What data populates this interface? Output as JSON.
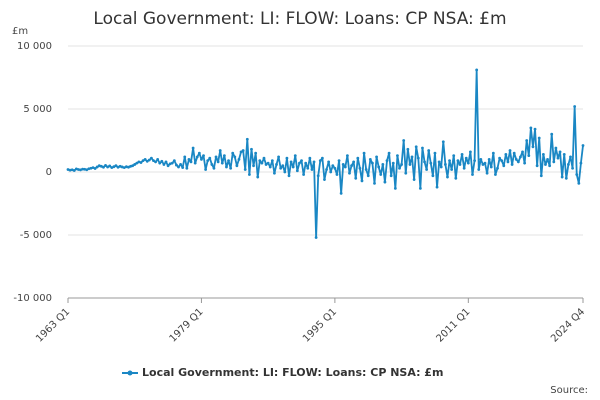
{
  "chart_data": {
    "type": "line",
    "title": "Local Government: LI: FLOW: Loans: CP NSA: £m",
    "y_label": "£m",
    "source": "Source:",
    "categories": [
      "1963 Q1",
      "1963 Q2",
      "1963 Q3",
      "1963 Q4",
      "1964 Q1",
      "1964 Q2",
      "1964 Q3",
      "1964 Q4",
      "1965 Q1",
      "1965 Q2",
      "1965 Q3",
      "1965 Q4",
      "1966 Q1",
      "1966 Q2",
      "1966 Q3",
      "1966 Q4",
      "1967 Q1",
      "1967 Q2",
      "1967 Q3",
      "1967 Q4",
      "1968 Q1",
      "1968 Q2",
      "1968 Q3",
      "1968 Q4",
      "1969 Q1",
      "1969 Q2",
      "1969 Q3",
      "1969 Q4",
      "1970 Q1",
      "1970 Q2",
      "1970 Q3",
      "1970 Q4",
      "1971 Q1",
      "1971 Q2",
      "1971 Q3",
      "1971 Q4",
      "1972 Q1",
      "1972 Q2",
      "1972 Q3",
      "1972 Q4",
      "1973 Q1",
      "1973 Q2",
      "1973 Q3",
      "1973 Q4",
      "1974 Q1",
      "1974 Q2",
      "1974 Q3",
      "1974 Q4",
      "1975 Q1",
      "1975 Q2",
      "1975 Q3",
      "1975 Q4",
      "1976 Q1",
      "1976 Q2",
      "1976 Q3",
      "1976 Q4",
      "1977 Q1",
      "1977 Q2",
      "1977 Q3",
      "1977 Q4",
      "1978 Q1",
      "1978 Q2",
      "1978 Q3",
      "1978 Q4",
      "1979 Q1",
      "1979 Q2",
      "1979 Q3",
      "1979 Q4",
      "1980 Q1",
      "1980 Q2",
      "1980 Q3",
      "1980 Q4",
      "1981 Q1",
      "1981 Q2",
      "1981 Q3",
      "1981 Q4",
      "1982 Q1",
      "1982 Q2",
      "1982 Q3",
      "1982 Q4",
      "1983 Q1",
      "1983 Q2",
      "1983 Q3",
      "1983 Q4",
      "1984 Q1",
      "1984 Q2",
      "1984 Q3",
      "1984 Q4",
      "1985 Q1",
      "1985 Q2",
      "1985 Q3",
      "1985 Q4",
      "1986 Q1",
      "1986 Q2",
      "1986 Q3",
      "1986 Q4",
      "1987 Q1",
      "1987 Q2",
      "1987 Q3",
      "1987 Q4",
      "1988 Q1",
      "1988 Q2",
      "1988 Q3",
      "1988 Q4",
      "1989 Q1",
      "1989 Q2",
      "1989 Q3",
      "1989 Q4",
      "1990 Q1",
      "1990 Q2",
      "1990 Q3",
      "1990 Q4",
      "1991 Q1",
      "1991 Q2",
      "1991 Q3",
      "1991 Q4",
      "1992 Q1",
      "1992 Q2",
      "1992 Q3",
      "1992 Q4",
      "1993 Q1",
      "1993 Q2",
      "1993 Q3",
      "1993 Q4",
      "1994 Q1",
      "1994 Q2",
      "1994 Q3",
      "1994 Q4",
      "1995 Q1",
      "1995 Q2",
      "1995 Q3",
      "1995 Q4",
      "1996 Q1",
      "1996 Q2",
      "1996 Q3",
      "1996 Q4",
      "1997 Q1",
      "1997 Q2",
      "1997 Q3",
      "1997 Q4",
      "1998 Q1",
      "1998 Q2",
      "1998 Q3",
      "1998 Q4",
      "1999 Q1",
      "1999 Q2",
      "1999 Q3",
      "1999 Q4",
      "2000 Q1",
      "2000 Q2",
      "2000 Q3",
      "2000 Q4",
      "2001 Q1",
      "2001 Q2",
      "2001 Q3",
      "2001 Q4",
      "2002 Q1",
      "2002 Q2",
      "2002 Q3",
      "2002 Q4",
      "2003 Q1",
      "2003 Q2",
      "2003 Q3",
      "2003 Q4",
      "2004 Q1",
      "2004 Q2",
      "2004 Q3",
      "2004 Q4",
      "2005 Q1",
      "2005 Q2",
      "2005 Q3",
      "2005 Q4",
      "2006 Q1",
      "2006 Q2",
      "2006 Q3",
      "2006 Q4",
      "2007 Q1",
      "2007 Q2",
      "2007 Q3",
      "2007 Q4",
      "2008 Q1",
      "2008 Q2",
      "2008 Q3",
      "2008 Q4",
      "2009 Q1",
      "2009 Q2",
      "2009 Q3",
      "2009 Q4",
      "2010 Q1",
      "2010 Q2",
      "2010 Q3",
      "2010 Q4",
      "2011 Q1",
      "2011 Q2",
      "2011 Q3",
      "2011 Q4",
      "2012 Q1",
      "2012 Q2",
      "2012 Q3",
      "2012 Q4",
      "2013 Q1",
      "2013 Q2",
      "2013 Q3",
      "2013 Q4",
      "2014 Q1",
      "2014 Q2",
      "2014 Q3",
      "2014 Q4",
      "2015 Q1",
      "2015 Q2",
      "2015 Q3",
      "2015 Q4",
      "2016 Q1",
      "2016 Q2",
      "2016 Q3",
      "2016 Q4",
      "2017 Q1",
      "2017 Q2",
      "2017 Q3",
      "2017 Q4",
      "2018 Q1",
      "2018 Q2",
      "2018 Q3",
      "2018 Q4",
      "2019 Q1",
      "2019 Q2",
      "2019 Q3",
      "2019 Q4",
      "2020 Q1",
      "2020 Q2",
      "2020 Q3",
      "2020 Q4",
      "2021 Q1",
      "2021 Q2",
      "2021 Q3",
      "2021 Q4",
      "2022 Q1",
      "2022 Q2",
      "2022 Q3",
      "2022 Q4",
      "2023 Q1",
      "2023 Q2",
      "2023 Q3",
      "2023 Q4",
      "2024 Q1",
      "2024 Q2",
      "2024 Q3",
      "2024 Q4"
    ],
    "xtick_indices": [
      0,
      64,
      128,
      192,
      247
    ],
    "series": [
      {
        "name": "Local Government: LI: FLOW: Loans: CP NSA: £m",
        "color": "#1a87c4",
        "values": [
          200,
          150,
          180,
          120,
          250,
          200,
          170,
          230,
          220,
          180,
          260,
          300,
          350,
          280,
          400,
          500,
          450,
          380,
          520,
          400,
          480,
          350,
          420,
          500,
          380,
          450,
          400,
          350,
          420,
          380,
          450,
          500,
          600,
          700,
          800,
          750,
          900,
          1000,
          850,
          950,
          1100,
          900,
          800,
          1000,
          700,
          850,
          600,
          800,
          500,
          650,
          700,
          900,
          550,
          400,
          600,
          350,
          1200,
          300,
          1000,
          800,
          1900,
          700,
          1200,
          1500,
          1000,
          1300,
          200,
          900,
          1100,
          600,
          300,
          1200,
          800,
          1700,
          700,
          1300,
          400,
          900,
          300,
          1500,
          1200,
          500,
          1000,
          1600,
          1700,
          200,
          2600,
          -200,
          1800,
          500,
          1500,
          -400,
          900,
          700,
          1100,
          600,
          700,
          400,
          900,
          -100,
          600,
          1200,
          300,
          500,
          0,
          1100,
          -300,
          800,
          400,
          1300,
          100,
          700,
          900,
          -200,
          700,
          300,
          1100,
          200,
          800,
          -5200,
          -300,
          900,
          1100,
          -600,
          200,
          800,
          0,
          500,
          300,
          -200,
          900,
          -1700,
          600,
          400,
          1300,
          -100,
          500,
          800,
          -500,
          1100,
          300,
          -700,
          1500,
          200,
          -300,
          1000,
          700,
          -900,
          1200,
          400,
          -200,
          600,
          -800,
          900,
          1500,
          -300,
          700,
          -1300,
          1300,
          300,
          600,
          2500,
          -100,
          1800,
          600,
          1200,
          -600,
          2000,
          1100,
          -1300,
          1900,
          800,
          200,
          1700,
          700,
          -300,
          1500,
          -1200,
          800,
          400,
          2400,
          600,
          -400,
          900,
          200,
          1300,
          -500,
          900,
          600,
          1400,
          300,
          1100,
          700,
          1600,
          -200,
          900,
          8100,
          200,
          1000,
          600,
          700,
          -100,
          1000,
          400,
          1500,
          -200,
          300,
          1100,
          900,
          500,
          1400,
          800,
          1700,
          600,
          1500,
          1000,
          800,
          1200,
          1600,
          700,
          2500,
          1300,
          3500,
          2000,
          3400,
          500,
          2700,
          -300,
          1400,
          600,
          1000,
          500,
          3000,
          800,
          1900,
          1100,
          1600,
          -400,
          1400,
          -500,
          600,
          1200,
          300,
          5200,
          -200,
          -900,
          700,
          2100
        ]
      }
    ],
    "ylim": [
      -10000,
      10000
    ],
    "yticks": [
      {
        "value": -10000,
        "label": "-10 000"
      },
      {
        "value": -5000,
        "label": "-5 000"
      },
      0,
      {
        "value": 5000,
        "label": "5 000"
      },
      {
        "value": 10000,
        "label": "10 000"
      }
    ],
    "grid": true
  }
}
